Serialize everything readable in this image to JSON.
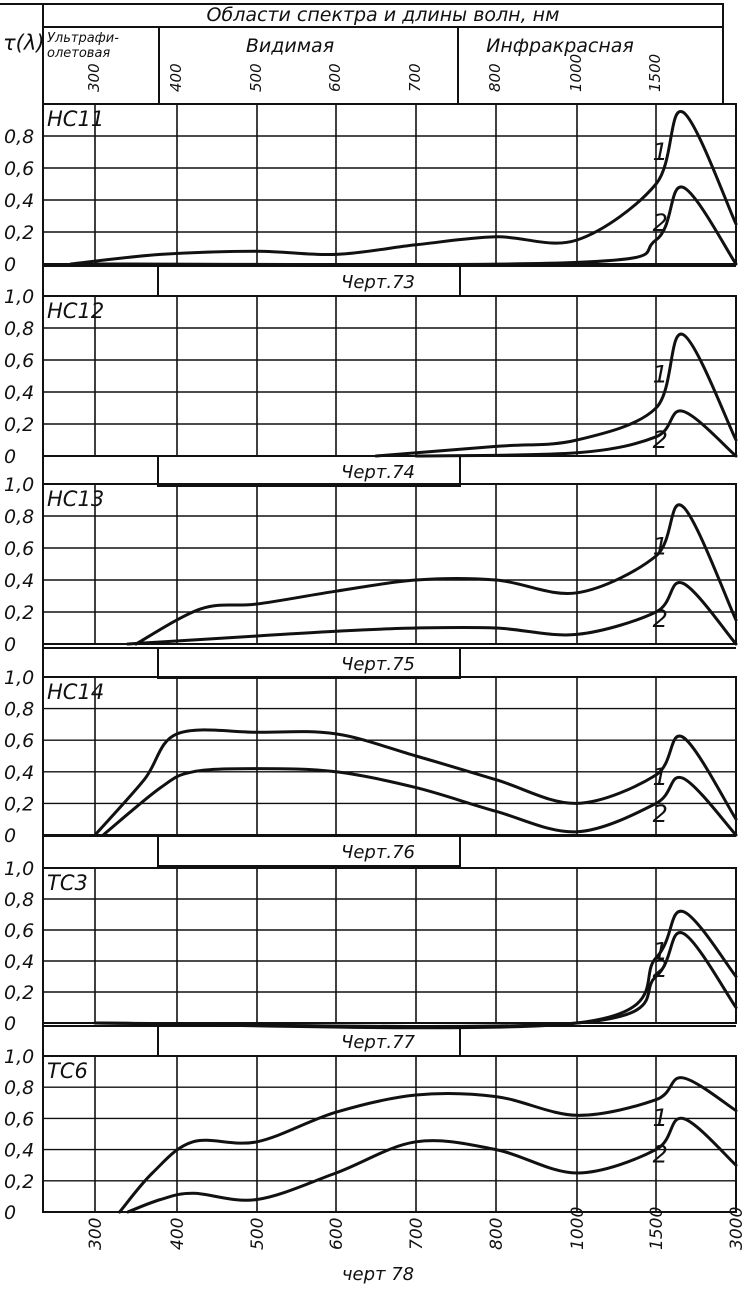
{
  "header": {
    "title": "Области спектра и длины волн, нм",
    "y_symbol": "τ(λ)",
    "regions": [
      "Ультрафи-олетовая",
      "Видимая",
      "Инфракрасная"
    ],
    "region_lines": [
      "Ультрафи-",
      "олетовая"
    ]
  },
  "wavelength_ticks": [
    "300",
    "400",
    "500",
    "600",
    "700",
    "800",
    "1000",
    "1500",
    "3000"
  ],
  "y_ticks": [
    "1,0",
    "0,8",
    "0,6",
    "0,4",
    "0,2",
    "0"
  ],
  "figure_caption": "черт 78",
  "chart_data": [
    {
      "type": "line",
      "label": "НС11",
      "caption": "Черт.73",
      "xlabel": "Области спектра и длины волн, нм",
      "ylabel": "τ(λ)",
      "ylim": [
        0,
        1.0
      ],
      "x": [
        "300",
        "400",
        "500",
        "600",
        "700",
        "800",
        "1000",
        "1500",
        "3000"
      ],
      "series": [
        {
          "name": "1",
          "points": [
            [
              270,
              0
            ],
            [
              380,
              0.06
            ],
            [
              500,
              0.08
            ],
            [
              600,
              0.06
            ],
            [
              700,
              0.12
            ],
            [
              800,
              0.17
            ],
            [
              1000,
              0.15
            ],
            [
              1500,
              0.5
            ],
            [
              2000,
              0.95
            ],
            [
              3000,
              0.25
            ]
          ]
        },
        {
          "name": "2",
          "points": [
            [
              300,
              0
            ],
            [
              1000,
              0.01
            ],
            [
              1500,
              0.15
            ],
            [
              2000,
              0.48
            ],
            [
              3000,
              0
            ]
          ]
        }
      ]
    },
    {
      "type": "line",
      "label": "НС12",
      "caption": "Черт.74",
      "xlabel": "Области спектра и длины волн, нм",
      "ylabel": "τ(λ)",
      "ylim": [
        0,
        1.0
      ],
      "x": [
        "300",
        "400",
        "500",
        "600",
        "700",
        "800",
        "1000",
        "1500",
        "3000"
      ],
      "series": [
        {
          "name": "1",
          "points": [
            [
              650,
              0
            ],
            [
              800,
              0.06
            ],
            [
              1000,
              0.1
            ],
            [
              1500,
              0.3
            ],
            [
              2000,
              0.76
            ],
            [
              3000,
              0.1
            ]
          ]
        },
        {
          "name": "2",
          "points": [
            [
              700,
              0
            ],
            [
              1000,
              0.02
            ],
            [
              1500,
              0.12
            ],
            [
              2000,
              0.28
            ],
            [
              3000,
              0
            ]
          ]
        }
      ]
    },
    {
      "type": "line",
      "label": "НС13",
      "caption": "Черт.75",
      "xlabel": "Области спектра и длины волн, нм",
      "ylabel": "τ(λ)",
      "ylim": [
        0,
        1.0
      ],
      "x": [
        "300",
        "400",
        "500",
        "600",
        "700",
        "800",
        "1000",
        "1500",
        "3000"
      ],
      "series": [
        {
          "name": "1",
          "points": [
            [
              350,
              0
            ],
            [
              430,
              0.22
            ],
            [
              500,
              0.25
            ],
            [
              600,
              0.33
            ],
            [
              700,
              0.4
            ],
            [
              800,
              0.4
            ],
            [
              1000,
              0.32
            ],
            [
              1500,
              0.55
            ],
            [
              2000,
              0.86
            ],
            [
              3000,
              0.15
            ]
          ]
        },
        {
          "name": "2",
          "points": [
            [
              340,
              0
            ],
            [
              500,
              0.05
            ],
            [
              600,
              0.08
            ],
            [
              700,
              0.1
            ],
            [
              800,
              0.1
            ],
            [
              1000,
              0.06
            ],
            [
              1500,
              0.2
            ],
            [
              2000,
              0.38
            ],
            [
              3000,
              0
            ]
          ]
        }
      ]
    },
    {
      "type": "line",
      "label": "НС14",
      "caption": "Черт.76",
      "xlabel": "Области спектра и длины волн, нм",
      "ylabel": "τ(λ)",
      "ylim": [
        0,
        1.0
      ],
      "x": [
        "300",
        "400",
        "500",
        "600",
        "700",
        "800",
        "1000",
        "1500",
        "3000"
      ],
      "series": [
        {
          "name": "1",
          "points": [
            [
              300,
              0
            ],
            [
              360,
              0.35
            ],
            [
              400,
              0.64
            ],
            [
              500,
              0.65
            ],
            [
              600,
              0.64
            ],
            [
              700,
              0.5
            ],
            [
              800,
              0.35
            ],
            [
              1000,
              0.2
            ],
            [
              1500,
              0.38
            ],
            [
              2000,
              0.62
            ],
            [
              3000,
              0.1
            ]
          ]
        },
        {
          "name": "2",
          "points": [
            [
              310,
              0
            ],
            [
              380,
              0.3
            ],
            [
              420,
              0.4
            ],
            [
              500,
              0.42
            ],
            [
              600,
              0.4
            ],
            [
              700,
              0.3
            ],
            [
              800,
              0.15
            ],
            [
              1000,
              0.02
            ],
            [
              1500,
              0.2
            ],
            [
              2000,
              0.36
            ],
            [
              3000,
              0
            ]
          ]
        }
      ]
    },
    {
      "type": "line",
      "label": "ТС3",
      "caption": "Черт.77",
      "xlabel": "Области спектра и длины волн, нм",
      "ylabel": "τ(λ)",
      "ylim": [
        0,
        1.0
      ],
      "x": [
        "300",
        "400",
        "500",
        "600",
        "700",
        "800",
        "1000",
        "1500",
        "3000"
      ],
      "series": [
        {
          "name": "1",
          "points": [
            [
              300,
              0
            ],
            [
              1000,
              0
            ],
            [
              1500,
              0.42
            ],
            [
              2000,
              0.72
            ],
            [
              3000,
              0.3
            ]
          ]
        },
        {
          "name": "2",
          "points": [
            [
              300,
              0
            ],
            [
              1000,
              0
            ],
            [
              1500,
              0.3
            ],
            [
              2000,
              0.58
            ],
            [
              3000,
              0.1
            ]
          ]
        }
      ]
    },
    {
      "type": "line",
      "label": "ТС6",
      "caption": "черт 78",
      "xlabel": "Области спектра и длины волн, нм",
      "ylabel": "τ(λ)",
      "ylim": [
        0,
        1.0
      ],
      "x": [
        "300",
        "400",
        "500",
        "600",
        "700",
        "800",
        "1000",
        "1500",
        "3000"
      ],
      "series": [
        {
          "name": "1",
          "points": [
            [
              330,
              0
            ],
            [
              370,
              0.25
            ],
            [
              420,
              0.45
            ],
            [
              500,
              0.45
            ],
            [
              600,
              0.64
            ],
            [
              700,
              0.75
            ],
            [
              800,
              0.74
            ],
            [
              1000,
              0.62
            ],
            [
              1500,
              0.72
            ],
            [
              2000,
              0.86
            ],
            [
              3000,
              0.65
            ]
          ]
        },
        {
          "name": "2",
          "points": [
            [
              340,
              0
            ],
            [
              380,
              0.08
            ],
            [
              420,
              0.12
            ],
            [
              500,
              0.08
            ],
            [
              600,
              0.25
            ],
            [
              700,
              0.45
            ],
            [
              800,
              0.4
            ],
            [
              1000,
              0.25
            ],
            [
              1500,
              0.4
            ],
            [
              2000,
              0.6
            ],
            [
              3000,
              0.3
            ]
          ]
        }
      ]
    }
  ]
}
